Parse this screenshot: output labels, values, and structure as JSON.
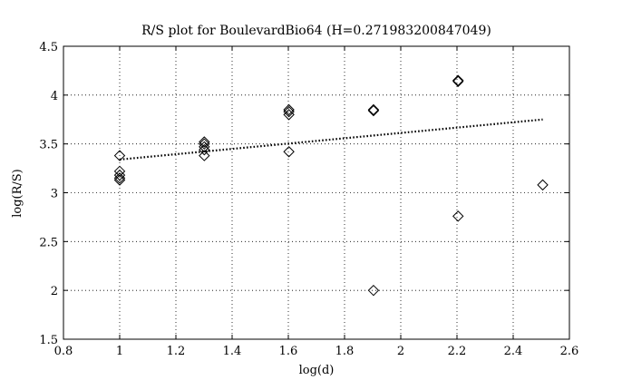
{
  "chart_data": {
    "type": "scatter",
    "title": "R/S plot for BoulevardBio64 (H=0.271983200847049)",
    "xlabel": "log(d)",
    "ylabel": "log(R/S)",
    "xlim": [
      0.8,
      2.6
    ],
    "ylim": [
      1.5,
      4.5
    ],
    "xticks": [
      "0.8",
      "1",
      "1.2",
      "1.4",
      "1.6",
      "1.8",
      "2",
      "2.2",
      "2.4",
      "2.6"
    ],
    "yticks": [
      "1.5",
      "2",
      "2.5",
      "3",
      "3.5",
      "4",
      "4.5"
    ],
    "grid": true,
    "marker": "diamond",
    "points": [
      {
        "x": 1.0,
        "y": 3.38
      },
      {
        "x": 1.0,
        "y": 3.22
      },
      {
        "x": 1.0,
        "y": 3.18
      },
      {
        "x": 1.0,
        "y": 3.15
      },
      {
        "x": 1.0,
        "y": 3.13
      },
      {
        "x": 1.301,
        "y": 3.52
      },
      {
        "x": 1.301,
        "y": 3.5
      },
      {
        "x": 1.301,
        "y": 3.47
      },
      {
        "x": 1.301,
        "y": 3.44
      },
      {
        "x": 1.301,
        "y": 3.38
      },
      {
        "x": 1.602,
        "y": 3.85
      },
      {
        "x": 1.602,
        "y": 3.83
      },
      {
        "x": 1.602,
        "y": 3.8
      },
      {
        "x": 1.602,
        "y": 3.42
      },
      {
        "x": 1.903,
        "y": 3.85
      },
      {
        "x": 1.903,
        "y": 3.84
      },
      {
        "x": 1.903,
        "y": 2.0
      },
      {
        "x": 2.204,
        "y": 4.15
      },
      {
        "x": 2.204,
        "y": 4.14
      },
      {
        "x": 2.204,
        "y": 2.76
      },
      {
        "x": 2.505,
        "y": 3.08
      }
    ],
    "fit_line": {
      "style": "dotted",
      "x": [
        1.0,
        2.505
      ],
      "y": [
        3.34,
        3.75
      ]
    }
  }
}
